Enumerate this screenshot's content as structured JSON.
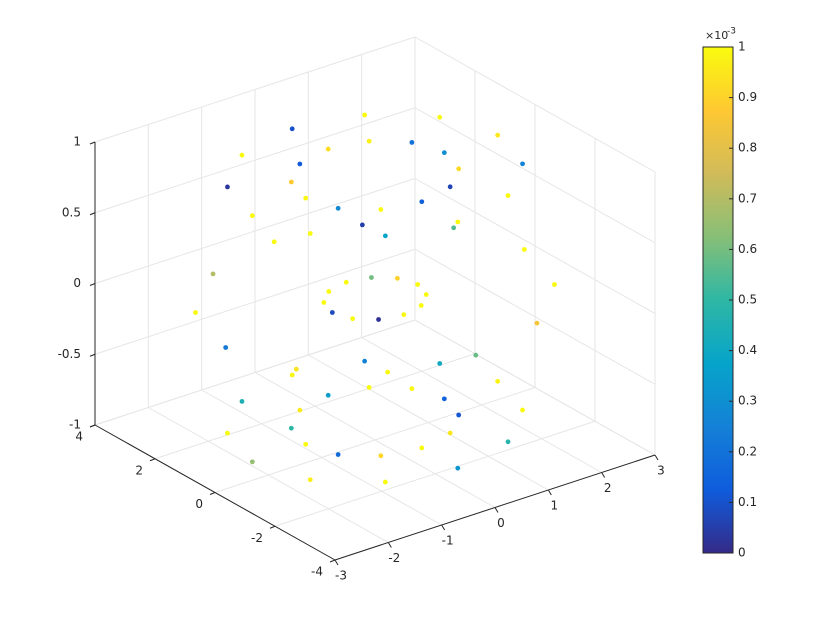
{
  "chart_data": {
    "type": "scatter3",
    "xlim": [
      -3,
      3
    ],
    "ylim": [
      -4,
      4
    ],
    "zlim": [
      -1,
      1
    ],
    "xticks": [
      -3,
      -2,
      -1,
      0,
      1,
      2,
      3
    ],
    "yticks": [
      -4,
      -2,
      0,
      2,
      4
    ],
    "zticks": [
      -1,
      -0.5,
      0,
      0.5,
      1
    ],
    "grid": true,
    "clim": [
      0,
      1
    ],
    "cticks": [
      0,
      0.1,
      0.2,
      0.3,
      0.4,
      0.5,
      0.6,
      0.7,
      0.8,
      0.9,
      1
    ],
    "colorbar_multiplier": {
      "base": "×10",
      "exponent": "-3"
    },
    "colormap": [
      "#352a87",
      "#0f5cdd",
      "#1481d6",
      "#06a4ca",
      "#2eb7a4",
      "#87bf77",
      "#d1bb59",
      "#fec832",
      "#f9fb0e"
    ],
    "x": [
      2.8,
      2.3,
      1.3,
      0.8,
      1.3,
      2.3,
      2.42,
      1.99,
      1.13,
      0.69,
      1.13,
      1.99,
      1.4,
      1.15,
      0.65,
      0.4,
      0.65,
      1.15,
      0,
      0,
      0,
      0,
      0,
      0,
      -1.4,
      -1.15,
      -0.65,
      -0.4,
      -0.65,
      -1.15,
      -2.42,
      -1.99,
      -1.13,
      -0.69,
      -1.13,
      -1.99,
      -2.8,
      -2.3,
      -1.3,
      -0.8,
      -1.3,
      -2.3,
      -2.42,
      -1.99,
      -1.13,
      -0.69,
      -1.13,
      -1.99,
      -1.4,
      -1.15,
      -0.65,
      -0.4,
      -0.65,
      -1.15,
      0,
      0,
      0,
      0,
      0,
      0,
      1.4,
      1.15,
      0.65,
      0.4,
      0.65,
      1.15,
      2.42,
      1.99,
      1.13,
      0.69,
      1.13,
      1.99
    ],
    "y": [
      0,
      0,
      0,
      0,
      0,
      0,
      1.68,
      1.38,
      0.78,
      0.48,
      0.78,
      1.38,
      2.91,
      2.39,
      1.35,
      0.83,
      1.35,
      2.39,
      3.36,
      2.76,
      1.56,
      0.96,
      1.56,
      2.76,
      2.91,
      2.39,
      1.35,
      0.83,
      1.35,
      2.39,
      1.68,
      1.38,
      0.78,
      0.48,
      0.78,
      1.38,
      0,
      0,
      0,
      0,
      0,
      0,
      -1.68,
      -1.38,
      -0.78,
      -0.48,
      -0.78,
      -1.38,
      -2.91,
      -2.39,
      -1.35,
      -0.83,
      -1.35,
      -2.39,
      -3.36,
      -2.76,
      -1.56,
      -0.96,
      -1.56,
      -2.76,
      -2.91,
      -2.39,
      -1.35,
      -0.83,
      -1.35,
      -2.39,
      -1.68,
      -1.38,
      -0.78,
      -0.48,
      -0.78,
      -1.38
    ],
    "z": [
      0,
      0.87,
      0.87,
      0,
      -0.87,
      -0.87,
      0,
      0.87,
      0.87,
      0,
      -0.87,
      -0.87,
      0,
      0.87,
      0.87,
      0,
      -0.87,
      -0.87,
      0,
      0.87,
      0.87,
      0,
      -0.87,
      -0.87,
      0,
      0.87,
      0.87,
      0,
      -0.87,
      -0.87,
      0,
      0.87,
      0.87,
      0,
      -0.87,
      -0.87,
      0,
      0.87,
      0.87,
      0,
      -0.87,
      -0.87,
      0,
      0.87,
      0.87,
      0,
      -0.87,
      -0.87,
      0,
      0.87,
      0.87,
      0,
      -0.87,
      -0.87,
      0,
      0.87,
      0.87,
      0,
      -0.87,
      -0.87,
      0,
      0.87,
      0.87,
      0,
      -0.87,
      -0.87,
      0,
      0.87,
      0.87,
      0,
      -0.87,
      -0.87
    ],
    "c": [
      1,
      0.95,
      0.3,
      1,
      0.15,
      0.98,
      0.55,
      1,
      0.2,
      0.9,
      1,
      0.4,
      0.05,
      1,
      0.97,
      0.6,
      1,
      0.25,
      1,
      0.1,
      0.93,
      1,
      0.35,
      0.99,
      0.7,
      1,
      0.12,
      1,
      0.96,
      0.45,
      1,
      0.03,
      0.88,
      1,
      0.5,
      1,
      0.22,
      1,
      0.99,
      0.08,
      1,
      0.65,
      0.94,
      1,
      0.28,
      1,
      0.18,
      0.97,
      1,
      0.38,
      1,
      0.02,
      0.91,
      1,
      0.58,
      1,
      0.14,
      0.99,
      1,
      0.33,
      0.85,
      1,
      0.07,
      1,
      0.95,
      0.48,
      1,
      0.26,
      0.92,
      1,
      0.11,
      1
    ]
  }
}
